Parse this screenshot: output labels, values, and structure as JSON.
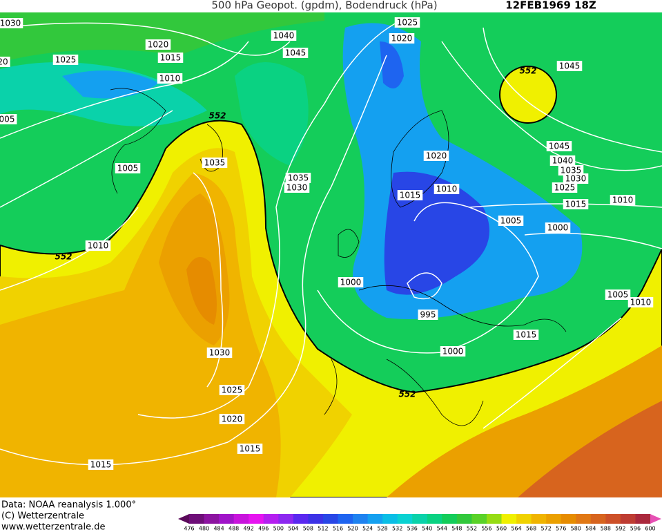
{
  "header": {
    "title": "500 hPa Geopot. (gpdm), Bodendruck (hPa)",
    "date": "12FEB1969 18Z"
  },
  "footer": {
    "lines": [
      "Data: NOAA reanalysis 1.000°",
      "(C) Wetterzentrale",
      "www.wetterzentrale.de"
    ]
  },
  "colorbar": {
    "labels": [
      476,
      480,
      484,
      488,
      492,
      496,
      500,
      504,
      508,
      512,
      516,
      520,
      524,
      528,
      532,
      536,
      540,
      544,
      548,
      552,
      556,
      560,
      564,
      568,
      572,
      576,
      580,
      584,
      588,
      592,
      596,
      600
    ],
    "colors": [
      "#5a0a5a",
      "#6e0f78",
      "#8c14a0",
      "#a014c8",
      "#c814dc",
      "#e614f0",
      "#b41ef0",
      "#8c28f0",
      "#5a28f0",
      "#3c32e6",
      "#2846e6",
      "#1e64f0",
      "#1e82f0",
      "#14a0f0",
      "#0abee6",
      "#0ad2d2",
      "#0ad2aa",
      "#0ad282",
      "#14cd5a",
      "#32c83c",
      "#5ad228",
      "#96dc14",
      "#f0f000",
      "#f0d200",
      "#f0b400",
      "#eba000",
      "#e68c00",
      "#e17814",
      "#d7641e",
      "#cd5028",
      "#be3c32",
      "#aa283c",
      "#e650b4"
    ]
  },
  "isobar_labels": [
    "1030",
    "1020",
    "1025",
    "1015",
    "1010",
    "1040",
    "1045",
    "1025",
    "1020",
    "1045",
    "1035",
    "1005",
    "1035",
    "1030",
    "1020",
    "1045",
    "1040",
    "1035",
    "1030",
    "1025",
    "1015",
    "1010",
    "1015",
    "1010",
    "1005",
    "1000",
    "1010",
    "1000",
    "995",
    "1005",
    "1010",
    "1015",
    "1000",
    "1030",
    "1025",
    "1020",
    "1015",
    "1015",
    "20",
    "005"
  ],
  "height_labels": [
    "552",
    "552",
    "552",
    "552"
  ]
}
